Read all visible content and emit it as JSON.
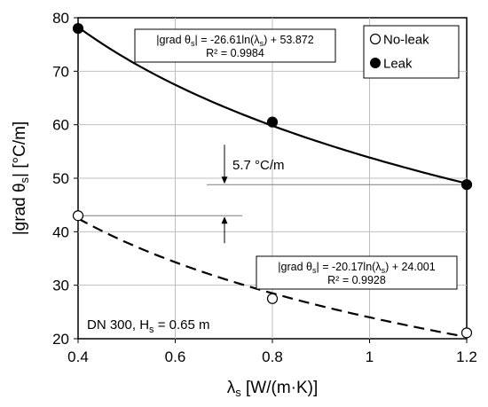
{
  "chart_data": {
    "type": "scatter",
    "xlabel": "λs [W/(m·K)]",
    "xlabel_main": "λ",
    "xlabel_sub": "s",
    "xlabel_rest": " [W/(m·K)]",
    "ylabel_parts": {
      "pre": "|grad θ",
      "sub": "s",
      "post": "| [°C/m]"
    },
    "xlim": [
      0.4,
      1.2
    ],
    "ylim": [
      20,
      80
    ],
    "x_ticks": [
      0.4,
      0.6,
      0.8,
      1.0,
      1.2
    ],
    "x_tick_labels": [
      "0.4",
      "0.6",
      "0.8",
      "1",
      "1.2"
    ],
    "y_ticks": [
      20,
      30,
      40,
      50,
      60,
      70,
      80
    ],
    "y_tick_labels": [
      "20",
      "30",
      "40",
      "50",
      "60",
      "70",
      "80"
    ],
    "grid": true,
    "legend_position": "top-right",
    "series": [
      {
        "name": "No-leak",
        "marker": "open-circle",
        "line_style": "dashed",
        "x": [
          0.4,
          0.8,
          1.2
        ],
        "y": [
          43.0,
          27.5,
          21.1
        ],
        "fit": {
          "a": -20.17,
          "b": 24.001
        },
        "equation_parts": {
          "pre": "|grad θ",
          "sub": "s",
          "post": "| = -20.17ln(λ",
          "sub2": "s",
          "post2": ") + 24.001"
        },
        "r2": "R² = 0.9928"
      },
      {
        "name": "Leak",
        "marker": "filled-circle",
        "line_style": "solid",
        "x": [
          0.4,
          0.8,
          1.2
        ],
        "y": [
          78.0,
          60.5,
          48.8
        ],
        "fit": {
          "a": -26.61,
          "b": 53.872
        },
        "equation_parts": {
          "pre": "|grad θ",
          "sub": "s",
          "post": "| = -26.61ln(λ",
          "sub2": "s",
          "post2": ") + 53.872"
        },
        "r2": "R² = 0.9984"
      }
    ],
    "annotations": {
      "difference": "5.7 °C/m",
      "difference_line_upper_y": 48.8,
      "difference_line_lower_y": 43.0,
      "case": {
        "pre": "DN 300, H",
        "sub": "s",
        "post": " = 0.65 m"
      }
    }
  },
  "colors": {
    "axis": "#000000",
    "grid": "#bfbfbf",
    "line": "#000000",
    "background": "#ffffff"
  }
}
